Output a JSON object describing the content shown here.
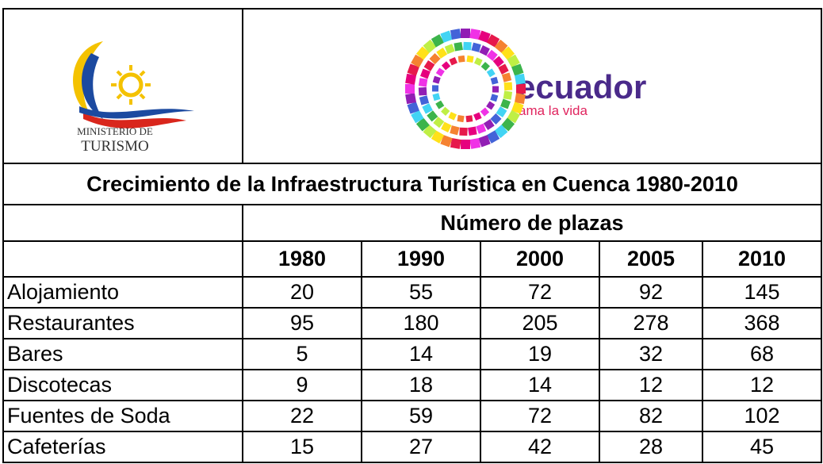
{
  "logos": {
    "ministry": {
      "line1": "MINISTERIO DE",
      "line2": "TURISMO"
    },
    "brand": {
      "name": "ecuador",
      "tagline": "ama la vida"
    }
  },
  "table": {
    "title": "Crecimiento de la Infraestructura Turística en Cuenca 1980-2010",
    "group_header": "Número de plazas",
    "columns": [
      "1980",
      "1990",
      "2000",
      "2005",
      "2010"
    ],
    "rows": [
      [
        "Alojamiento",
        20,
        55,
        72,
        92,
        145
      ],
      [
        "Restaurantes",
        95,
        180,
        205,
        278,
        368
      ],
      [
        "Bares",
        5,
        14,
        19,
        32,
        68
      ],
      [
        "Discotecas",
        9,
        18,
        14,
        12,
        12
      ],
      [
        "Fuentes de Soda",
        22,
        59,
        72,
        82,
        102
      ],
      [
        "Cafeterías",
        15,
        27,
        42,
        28,
        45
      ]
    ]
  }
}
